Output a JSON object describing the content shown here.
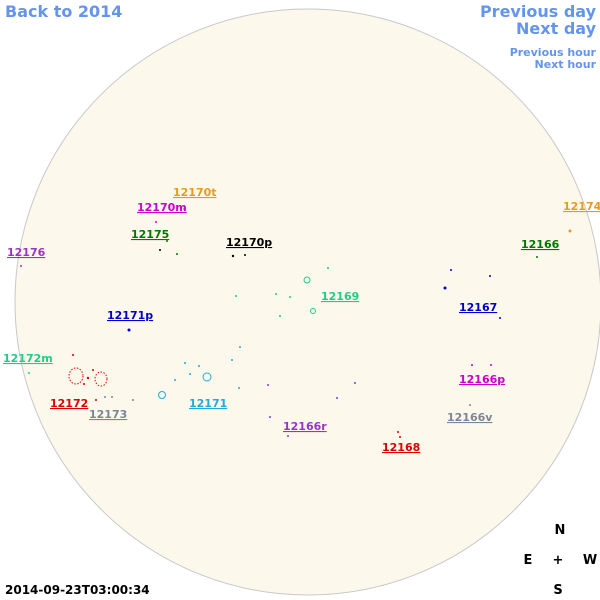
{
  "nav": {
    "back": "Back to 2014",
    "previous_day": "Previous day",
    "next_day": "Next day",
    "previous_hour": "Previous hour",
    "next_hour": "Next hour"
  },
  "regions": [
    {
      "label": "12170t",
      "color": "#e89a1e"
    },
    {
      "label": "12170m",
      "color": "#cc00cc"
    },
    {
      "label": "12175",
      "color": "#007700"
    },
    {
      "label": "12170p",
      "color": "#000000"
    },
    {
      "label": "12176",
      "color": "#9933cc"
    },
    {
      "label": "12166",
      "color": "#007700"
    },
    {
      "label": "12174",
      "color": "#e89a1e"
    },
    {
      "label": "12169",
      "color": "#22cc88"
    },
    {
      "label": "12167",
      "color": "#0000cc"
    },
    {
      "label": "12171p",
      "color": "#0000cc"
    },
    {
      "label": "12172m",
      "color": "#22cc88"
    },
    {
      "label": "12166p",
      "color": "#cc00cc"
    },
    {
      "label": "12172",
      "color": "#dd0000"
    },
    {
      "label": "12173",
      "color": "#778899"
    },
    {
      "label": "12171",
      "color": "#22aadd"
    },
    {
      "label": "12166r",
      "color": "#9933cc"
    },
    {
      "label": "12166v",
      "color": "#778899"
    },
    {
      "label": "12168",
      "color": "#dd0000"
    }
  ],
  "compass": {
    "north": "N",
    "east": "E",
    "center": "+",
    "west": "W",
    "south": "S"
  },
  "timestamp": "2014-09-23T03:00:34"
}
